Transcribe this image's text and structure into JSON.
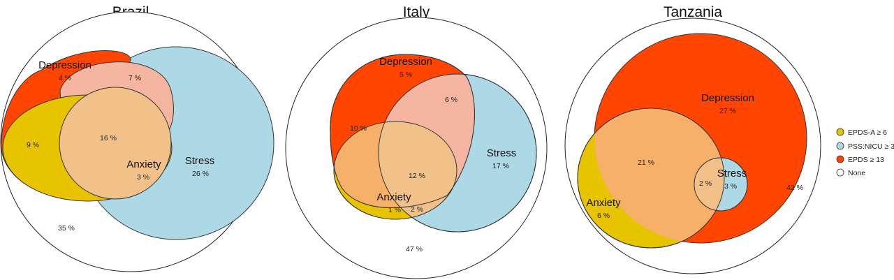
{
  "colors": {
    "anxiety": "#e8c300",
    "stress": "#add8e6",
    "depression": "#ff4500",
    "none": "#ffffff",
    "dep_stress": "#f5b5a1",
    "dep_anx": "#f7b069",
    "all_three": "#f2c189",
    "anx_stress": "#e8dfb0",
    "anx_stress_brazil": "#ecc9a0"
  },
  "legend": {
    "items": [
      {
        "label": "EPDS-A ≥ 6",
        "color": "#e8c300"
      },
      {
        "label": "PSS:NICU ≥ 3",
        "color": "#add8e6"
      },
      {
        "label": "EPDS ≥ 13",
        "color": "#ff4500"
      },
      {
        "label": "None",
        "color": "#ffffff"
      }
    ]
  },
  "panels": [
    {
      "title": "Brazil",
      "set_labels": {
        "depression": "Depression",
        "anxiety": "Anxiety",
        "stress": "Stress"
      },
      "values": {
        "depression_only": "4 %",
        "depression_stress": "7 %",
        "depression_anxiety": "9 %",
        "all_three": "16 %",
        "anxiety_stress": "3 %",
        "stress_only": "26 %",
        "none": "35 %"
      }
    },
    {
      "title": "Italy",
      "set_labels": {
        "depression": "Depression",
        "anxiety": "Anxiety",
        "stress": "Stress"
      },
      "values": {
        "depression_only": "5 %",
        "depression_stress": "6 %",
        "depression_anxiety": "10 %",
        "all_three": "12 %",
        "stress_only": "17 %",
        "anxiety_only": "1 %",
        "anxiety_stress": "2 %",
        "none": "47 %"
      }
    },
    {
      "title": "Tanzania",
      "set_labels": {
        "depression": "Depression",
        "anxiety": "Anxiety",
        "stress": "Stress"
      },
      "values": {
        "depression_only": "27 %",
        "depression_anxiety": "21 %",
        "depression_stress": "2 %",
        "stress_only": "3 %",
        "anxiety_only": "6 %",
        "none": "42 %"
      }
    }
  ]
}
